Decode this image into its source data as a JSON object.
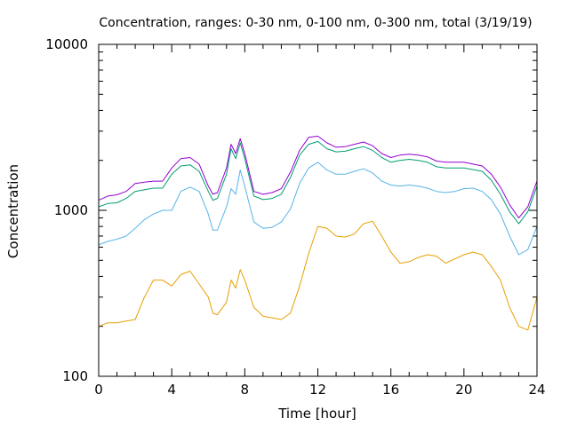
{
  "chart_data": {
    "type": "line",
    "title": "Concentration, ranges: 0-30 nm, 0-100 nm, 0-300 nm, total (3/19/19)",
    "xlabel": "Time [hour]",
    "ylabel": "Concentration",
    "xlim": [
      0,
      24
    ],
    "ylim": [
      100,
      10000
    ],
    "y_scale": "log",
    "grid": false,
    "legend": "none",
    "x_ticks": [
      "0",
      "4",
      "8",
      "12",
      "16",
      "20",
      "24"
    ],
    "y_ticks": [
      "100",
      "1000",
      "10000"
    ],
    "x_tick_values": [
      0,
      4,
      8,
      12,
      16,
      20,
      24
    ],
    "y_tick_values": [
      100,
      1000,
      10000
    ],
    "x": [
      0,
      0.5,
      1,
      1.5,
      2,
      2.5,
      3,
      3.5,
      4,
      4.5,
      5,
      5.5,
      6,
      6.25,
      6.5,
      7,
      7.25,
      7.5,
      7.75,
      8,
      8.5,
      9,
      9.5,
      10,
      10.5,
      11,
      11.5,
      12,
      12.5,
      13,
      13.5,
      14,
      14.5,
      15,
      15.5,
      16,
      16.5,
      17,
      17.5,
      18,
      18.5,
      19,
      19.5,
      20,
      20.5,
      21,
      21.5,
      22,
      22.5,
      23,
      23.5,
      24
    ],
    "series": [
      {
        "color": "#9400d3",
        "values": [
          1150,
          1220,
          1240,
          1300,
          1450,
          1480,
          1500,
          1500,
          1800,
          2050,
          2080,
          1900,
          1400,
          1250,
          1280,
          1800,
          2500,
          2200,
          2700,
          2200,
          1300,
          1250,
          1280,
          1350,
          1700,
          2300,
          2750,
          2800,
          2550,
          2400,
          2420,
          2500,
          2580,
          2450,
          2200,
          2080,
          2150,
          2180,
          2150,
          2100,
          1980,
          1950,
          1950,
          1950,
          1900,
          1850,
          1650,
          1380,
          1080,
          900,
          1050,
          1500
        ]
      },
      {
        "color": "#009e73",
        "values": [
          1050,
          1100,
          1110,
          1180,
          1300,
          1330,
          1360,
          1360,
          1650,
          1850,
          1880,
          1720,
          1300,
          1150,
          1180,
          1650,
          2350,
          2050,
          2550,
          2050,
          1220,
          1160,
          1180,
          1250,
          1580,
          2150,
          2500,
          2600,
          2350,
          2250,
          2270,
          2350,
          2420,
          2300,
          2080,
          1950,
          2000,
          2030,
          2000,
          1950,
          1830,
          1800,
          1800,
          1800,
          1760,
          1720,
          1520,
          1250,
          980,
          830,
          980,
          1400
        ]
      },
      {
        "color": "#56b4e9",
        "values": [
          620,
          650,
          670,
          700,
          780,
          880,
          950,
          1000,
          1000,
          1300,
          1380,
          1300,
          950,
          760,
          760,
          1050,
          1350,
          1250,
          1750,
          1400,
          850,
          780,
          790,
          850,
          1020,
          1450,
          1800,
          1950,
          1750,
          1650,
          1650,
          1720,
          1780,
          1680,
          1500,
          1420,
          1400,
          1420,
          1400,
          1360,
          1300,
          1280,
          1300,
          1350,
          1360,
          1300,
          1160,
          950,
          700,
          540,
          580,
          800
        ]
      },
      {
        "color": "#e69f00",
        "values": [
          200,
          210,
          210,
          215,
          220,
          300,
          380,
          380,
          350,
          410,
          430,
          360,
          300,
          240,
          235,
          280,
          380,
          340,
          440,
          380,
          260,
          230,
          225,
          220,
          240,
          350,
          550,
          800,
          780,
          700,
          690,
          720,
          830,
          860,
          700,
          560,
          480,
          490,
          520,
          540,
          530,
          480,
          510,
          540,
          560,
          540,
          460,
          380,
          260,
          200,
          190,
          300
        ]
      }
    ]
  }
}
